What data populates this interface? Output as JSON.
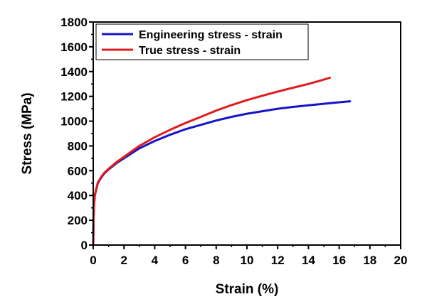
{
  "chart_data": {
    "type": "line",
    "title": "",
    "xlabel": "Strain (%)",
    "ylabel": "Stress (MPa)",
    "xlim": [
      0,
      20
    ],
    "ylim": [
      0,
      1800
    ],
    "xticks": [
      "0",
      "2",
      "4",
      "6",
      "8",
      "10",
      "12",
      "14",
      "16",
      "18",
      "20"
    ],
    "yticks": [
      "0",
      "200",
      "400",
      "600",
      "800",
      "1000",
      "1200",
      "1400",
      "1600",
      "1800"
    ],
    "grid": false,
    "legend_position": "top-left",
    "series": [
      {
        "name": "Engineering stress - strain",
        "color": "#1414c8",
        "x": [
          0,
          0.02,
          0.05,
          0.1,
          0.2,
          0.3,
          0.5,
          0.7,
          1.0,
          1.5,
          2.0,
          3.0,
          4.0,
          5.0,
          6.0,
          7.0,
          8.0,
          9.0,
          10.0,
          11.0,
          12.0,
          13.0,
          14.0,
          15.0,
          16.0,
          16.7
        ],
        "y": [
          0,
          200,
          320,
          400,
          450,
          500,
          540,
          575,
          610,
          660,
          700,
          780,
          840,
          890,
          935,
          970,
          1005,
          1035,
          1060,
          1080,
          1100,
          1115,
          1128,
          1140,
          1152,
          1160
        ]
      },
      {
        "name": "True stress - strain",
        "color": "#e01c1c",
        "x": [
          0,
          0.02,
          0.05,
          0.1,
          0.2,
          0.3,
          0.5,
          0.7,
          1.0,
          1.5,
          2.0,
          3.0,
          4.0,
          5.0,
          6.0,
          7.0,
          8.0,
          9.0,
          10.0,
          11.0,
          12.0,
          13.0,
          14.0,
          15.0,
          15.4
        ],
        "y": [
          0,
          200,
          320,
          400,
          455,
          505,
          545,
          580,
          615,
          668,
          712,
          800,
          870,
          930,
          985,
          1035,
          1085,
          1130,
          1170,
          1205,
          1238,
          1270,
          1300,
          1335,
          1350
        ]
      }
    ]
  }
}
